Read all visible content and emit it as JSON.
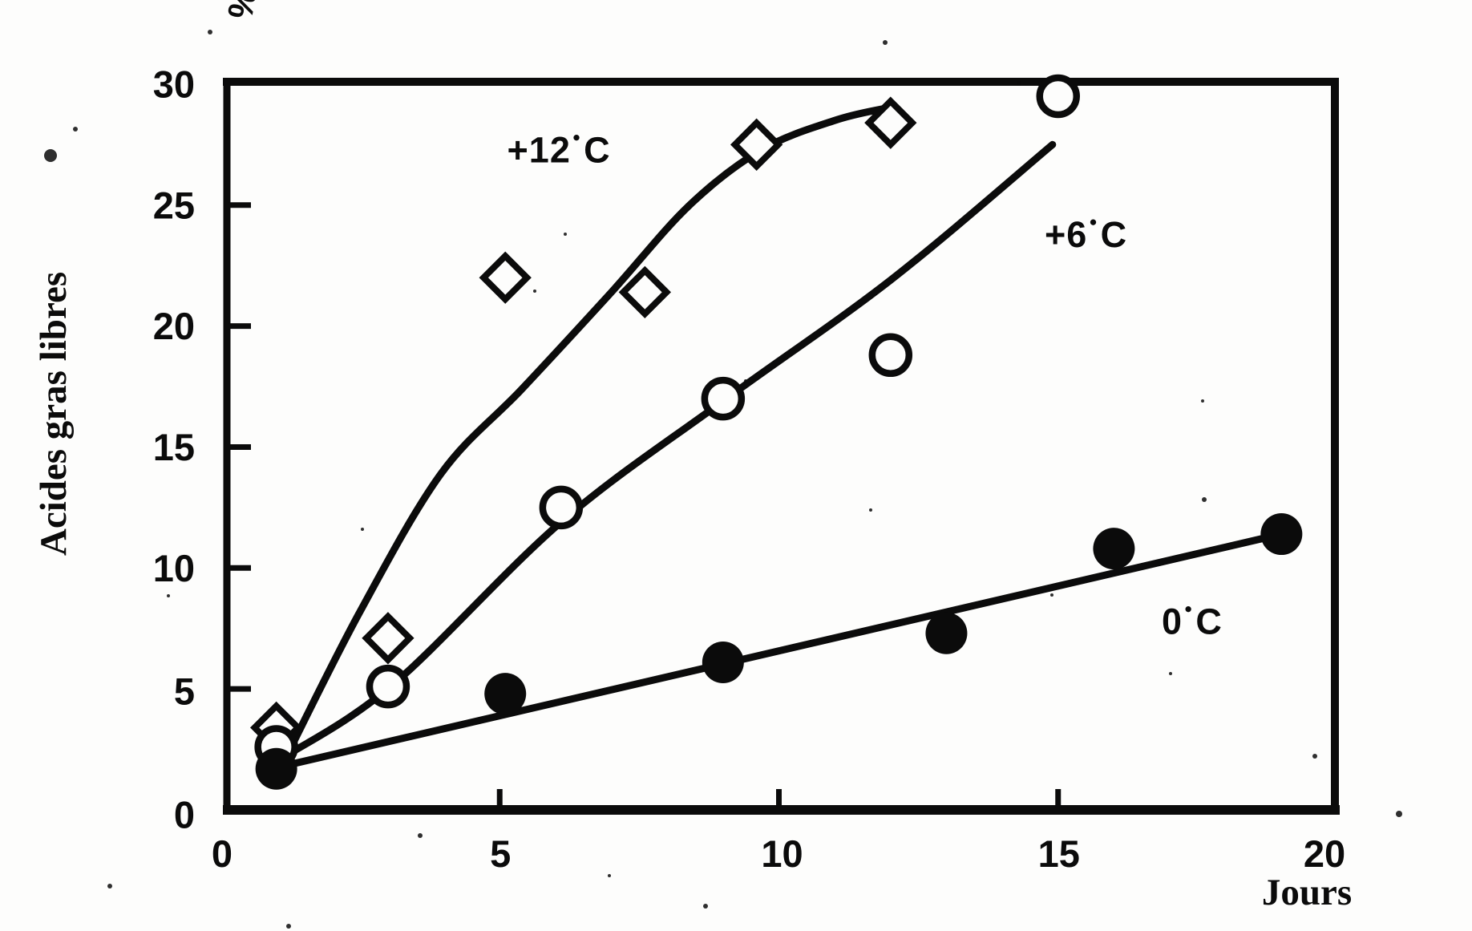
{
  "figure": {
    "ylabel": "Acides gras libres",
    "y_unit": "%",
    "xlabel": "Jours"
  },
  "chart_data": {
    "type": "scatter",
    "title": "",
    "xlabel": "Jours",
    "ylabel": "Acides gras libres",
    "y_unit": "%",
    "xlim": [
      0,
      20
    ],
    "ylim": [
      0,
      30
    ],
    "x_ticks": [
      0,
      5,
      10,
      15,
      20
    ],
    "y_ticks": [
      0,
      5,
      10,
      15,
      20,
      25,
      30
    ],
    "grid": false,
    "legend": "inline-annotations",
    "series": [
      {
        "name": "+12°C",
        "temperature_c": 12,
        "marker": "open-diamond",
        "points": [
          [
            1.0,
            3.4
          ],
          [
            3.0,
            7.1
          ],
          [
            5.1,
            22.0
          ],
          [
            7.6,
            21.4
          ],
          [
            9.6,
            27.5
          ],
          [
            12.0,
            28.4
          ]
        ],
        "trend": [
          [
            1.2,
            2.3
          ],
          [
            2.5,
            8.2
          ],
          [
            3.95,
            13.9
          ],
          [
            5.4,
            17.4
          ],
          [
            7.0,
            21.4
          ],
          [
            8.4,
            25.0
          ],
          [
            9.7,
            27.3
          ],
          [
            11.0,
            28.5
          ],
          [
            11.9,
            29.0
          ]
        ],
        "label_pos": [
          6.06,
          27.3
        ]
      },
      {
        "name": "+6°C",
        "temperature_c": 6,
        "marker": "open-circle",
        "points": [
          [
            1.0,
            2.6
          ],
          [
            3.0,
            5.1
          ],
          [
            6.1,
            12.5
          ],
          [
            9.0,
            17.0
          ],
          [
            12.0,
            18.8
          ],
          [
            15.0,
            29.5
          ]
        ],
        "trend": [
          [
            1.15,
            2.2
          ],
          [
            3.1,
            5.2
          ],
          [
            6.1,
            11.9
          ],
          [
            9.0,
            16.9
          ],
          [
            12.0,
            21.9
          ],
          [
            14.9,
            27.5
          ]
        ],
        "label_pos": [
          15.5,
          23.8
        ]
      },
      {
        "name": "0°C",
        "temperature_c": 0,
        "marker": "filled-circle",
        "points": [
          [
            1.0,
            1.7
          ],
          [
            5.1,
            4.8
          ],
          [
            9.0,
            6.1
          ],
          [
            13.0,
            7.3
          ],
          [
            16.0,
            10.8
          ],
          [
            19.0,
            11.4
          ]
        ],
        "trend": [
          [
            1.1,
            1.8
          ],
          [
            19.0,
            11.4
          ]
        ],
        "label_pos": [
          17.4,
          7.8
        ]
      }
    ]
  }
}
